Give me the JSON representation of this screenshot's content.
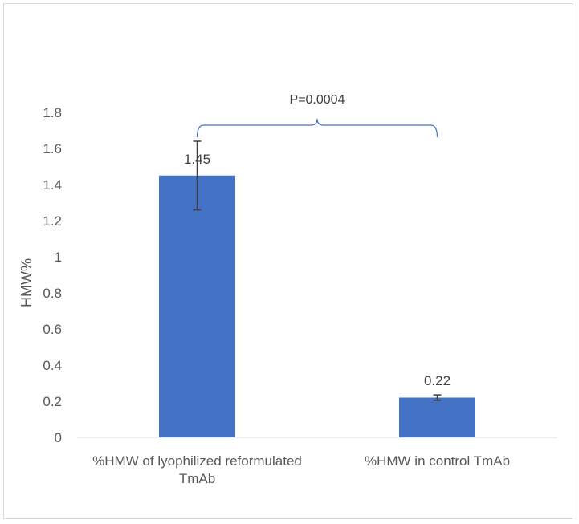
{
  "chart_data": {
    "type": "bar",
    "categories": [
      "%HMW of lyophilized reformulated TmAb",
      "%HMW  in control TmAb"
    ],
    "category_lines": [
      [
        "%HMW of lyophilized reformulated",
        "TmAb"
      ],
      [
        "%HMW  in control TmAb"
      ]
    ],
    "values": [
      1.45,
      0.22
    ],
    "data_labels": [
      "1.45",
      "0.22"
    ],
    "error_bars": [
      [
        1.26,
        1.64
      ],
      [
        0.205,
        0.235
      ]
    ],
    "ylabel": "HMW%",
    "ylim": [
      0,
      1.8
    ],
    "yticks": [
      "0",
      "0.2",
      "0.4",
      "0.6",
      "0.8",
      "1",
      "1.2",
      "1.4",
      "1.6",
      "1.8"
    ],
    "grid": false,
    "bar_color": "#4472C4",
    "bracket_color": "#4472C4",
    "annotation": "P=0.0004"
  }
}
